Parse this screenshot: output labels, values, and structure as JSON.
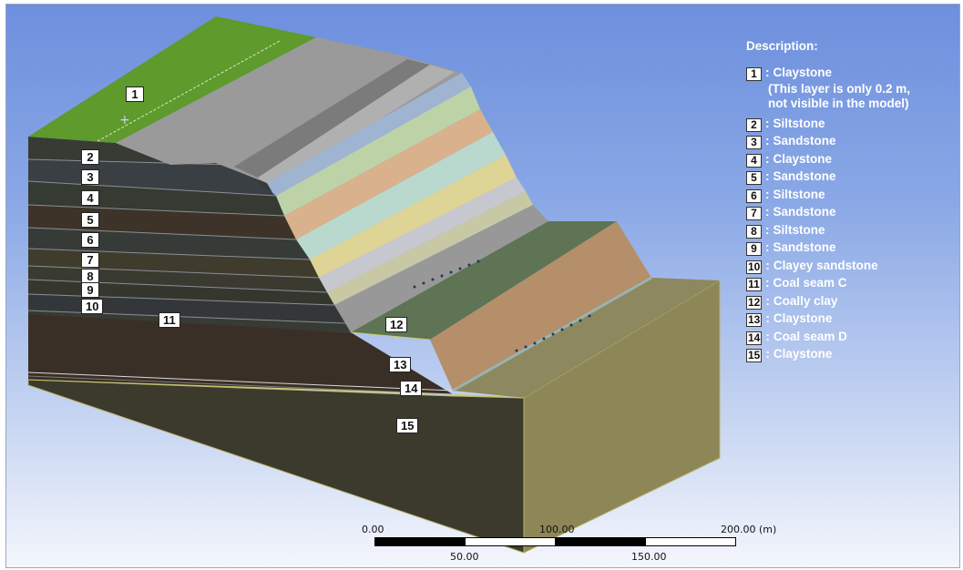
{
  "colors": {
    "background_top": "#6d8fdd",
    "background_bottom": "#f4f6fc",
    "grass_top": "#5e9a2c",
    "front_face": "#3a3a36",
    "side_face": "#8d8656",
    "legend_text": "#ffffff"
  },
  "layer_tags": [
    "1",
    "2",
    "3",
    "4",
    "5",
    "6",
    "7",
    "8",
    "9",
    "10",
    "11",
    "12",
    "13",
    "14",
    "15"
  ],
  "legend": {
    "title": "Description:",
    "items": [
      {
        "num": "1",
        "name": "Claystone",
        "note": "(This layer is only 0.2 m, not visible in the model)",
        "note_line1": "(This layer is only 0.2 m,",
        "note_line2": "not visible in the model)"
      },
      {
        "num": "2",
        "name": "Siltstone"
      },
      {
        "num": "3",
        "name": "Sandstone"
      },
      {
        "num": "4",
        "name": "Claystone"
      },
      {
        "num": "5",
        "name": "Sandstone"
      },
      {
        "num": "6",
        "name": "Siltstone"
      },
      {
        "num": "7",
        "name": "Sandstone"
      },
      {
        "num": "8",
        "name": "Siltstone"
      },
      {
        "num": "9",
        "name": "Sandstone"
      },
      {
        "num": "10",
        "name": "Clayey sandstone"
      },
      {
        "num": "11",
        "name": "Coal seam C"
      },
      {
        "num": "12",
        "name": "Coally clay"
      },
      {
        "num": "13",
        "name": "Claystone"
      },
      {
        "num": "14",
        "name": "Coal seam D"
      },
      {
        "num": "15",
        "name": "Claystone"
      }
    ]
  },
  "scale_bar": {
    "top_labels": [
      "0.00",
      "100.00",
      "200.00 (m)"
    ],
    "bottom_labels": [
      "50.00",
      "150.00"
    ]
  }
}
